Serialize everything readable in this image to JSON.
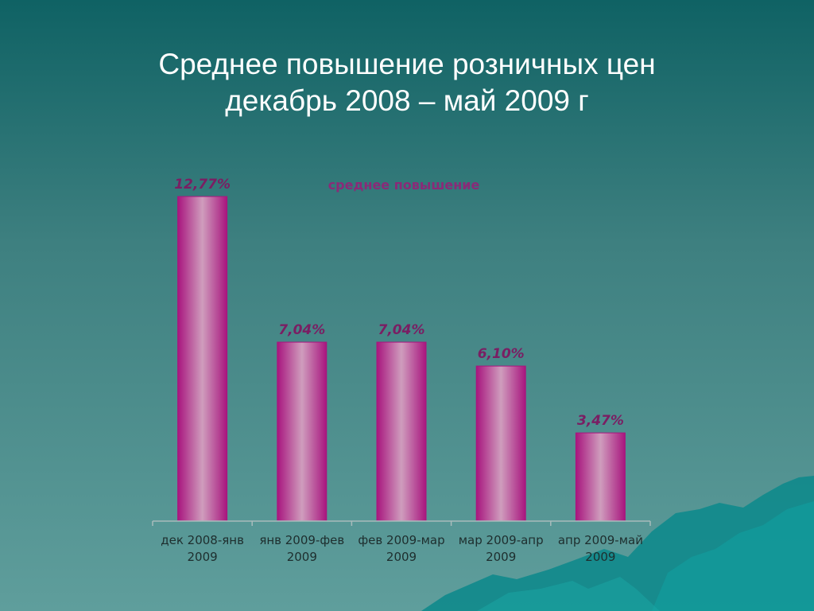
{
  "slide": {
    "title_line1": "Среднее повышение розничных цен",
    "title_line2": "декабрь 2008 – май 2009 г"
  },
  "colors": {
    "bar_edge": "#a8157e",
    "bar_center": "#cf9dbd",
    "label": "#7a1e63",
    "legend": "#8a2a78",
    "axis": "#a9bcbc",
    "deco": "#0f8a8c"
  },
  "chart_data": {
    "type": "bar",
    "categories": [
      [
        "дек 2008-янв",
        "2009"
      ],
      [
        "янв 2009-фев",
        "2009"
      ],
      [
        "фев 2009-мар",
        "2009"
      ],
      [
        "мар 2009-апр",
        "2009"
      ],
      [
        "апр 2009-май",
        "2009"
      ]
    ],
    "series": [
      {
        "name": "среднее повышение",
        "values": [
          12.77,
          7.04,
          7.04,
          6.1,
          3.47
        ],
        "data_labels": [
          "12,77%",
          "7,04%",
          "7,04%",
          "6,10%",
          "3,47%"
        ]
      }
    ],
    "ylim": [
      0,
      14
    ],
    "grid": false,
    "legend": "top"
  }
}
